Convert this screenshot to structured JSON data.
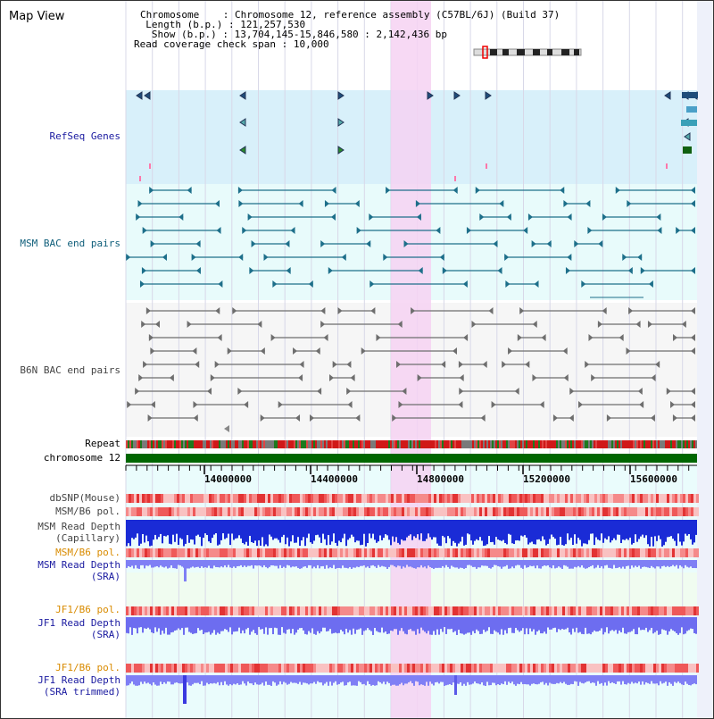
{
  "title": "Map View",
  "info": {
    "chromosome_label": "Chromosome",
    "chromosome_value": "Chromosome 12, reference assembly (C57BL/6J) (Build 37)",
    "length_label": "Length (b.p.)",
    "length_value": "121,257,530",
    "show_label": "Show (b.p.)",
    "show_value": "13,704,145-15,846,580 : 2,142,436 bp",
    "span_label": "Read coverage check span",
    "span_value": "10,000"
  },
  "tracks": {
    "refseq": "RefSeq Genes",
    "msm_bac": "MSM BAC end pairs",
    "b6n_bac": "B6N BAC end pairs",
    "repeat": "Repeat",
    "chromosome": "chromosome 12",
    "dbsnp": "dbSNP(Mouse)",
    "msm_pol": "MSM/B6 pol.",
    "msm_depth_cap_1": "MSM Read Depth",
    "msm_depth_cap_2": "(Capillary)",
    "msm_pol_2": "MSM/B6 pol.",
    "msm_depth_sra_1": "MSM Read Depth",
    "msm_depth_sra_2": "(SRA)",
    "jf1_pol": "JF1/B6 pol.",
    "jf1_depth_1": "JF1 Read Depth",
    "jf1_depth_2": "(SRA)",
    "jf1_pol_2": "JF1/B6 pol.",
    "jf1_trim_1": "JF1 Read Depth",
    "jf1_trim_2": "(SRA trimmed)"
  },
  "axis": {
    "ticks": [
      "14000000",
      "14400000",
      "14800000",
      "15200000",
      "15600000"
    ]
  },
  "colors": {
    "refseq_bg": "#d8f0fa",
    "bac_bg": "#e8fbfb",
    "highlight": "#f6d2f2",
    "chrom_green": "#006600",
    "depth_blue": "#1a2bd6",
    "depth_light": "#7f7ff5",
    "pol_red": "#ee5555"
  }
}
